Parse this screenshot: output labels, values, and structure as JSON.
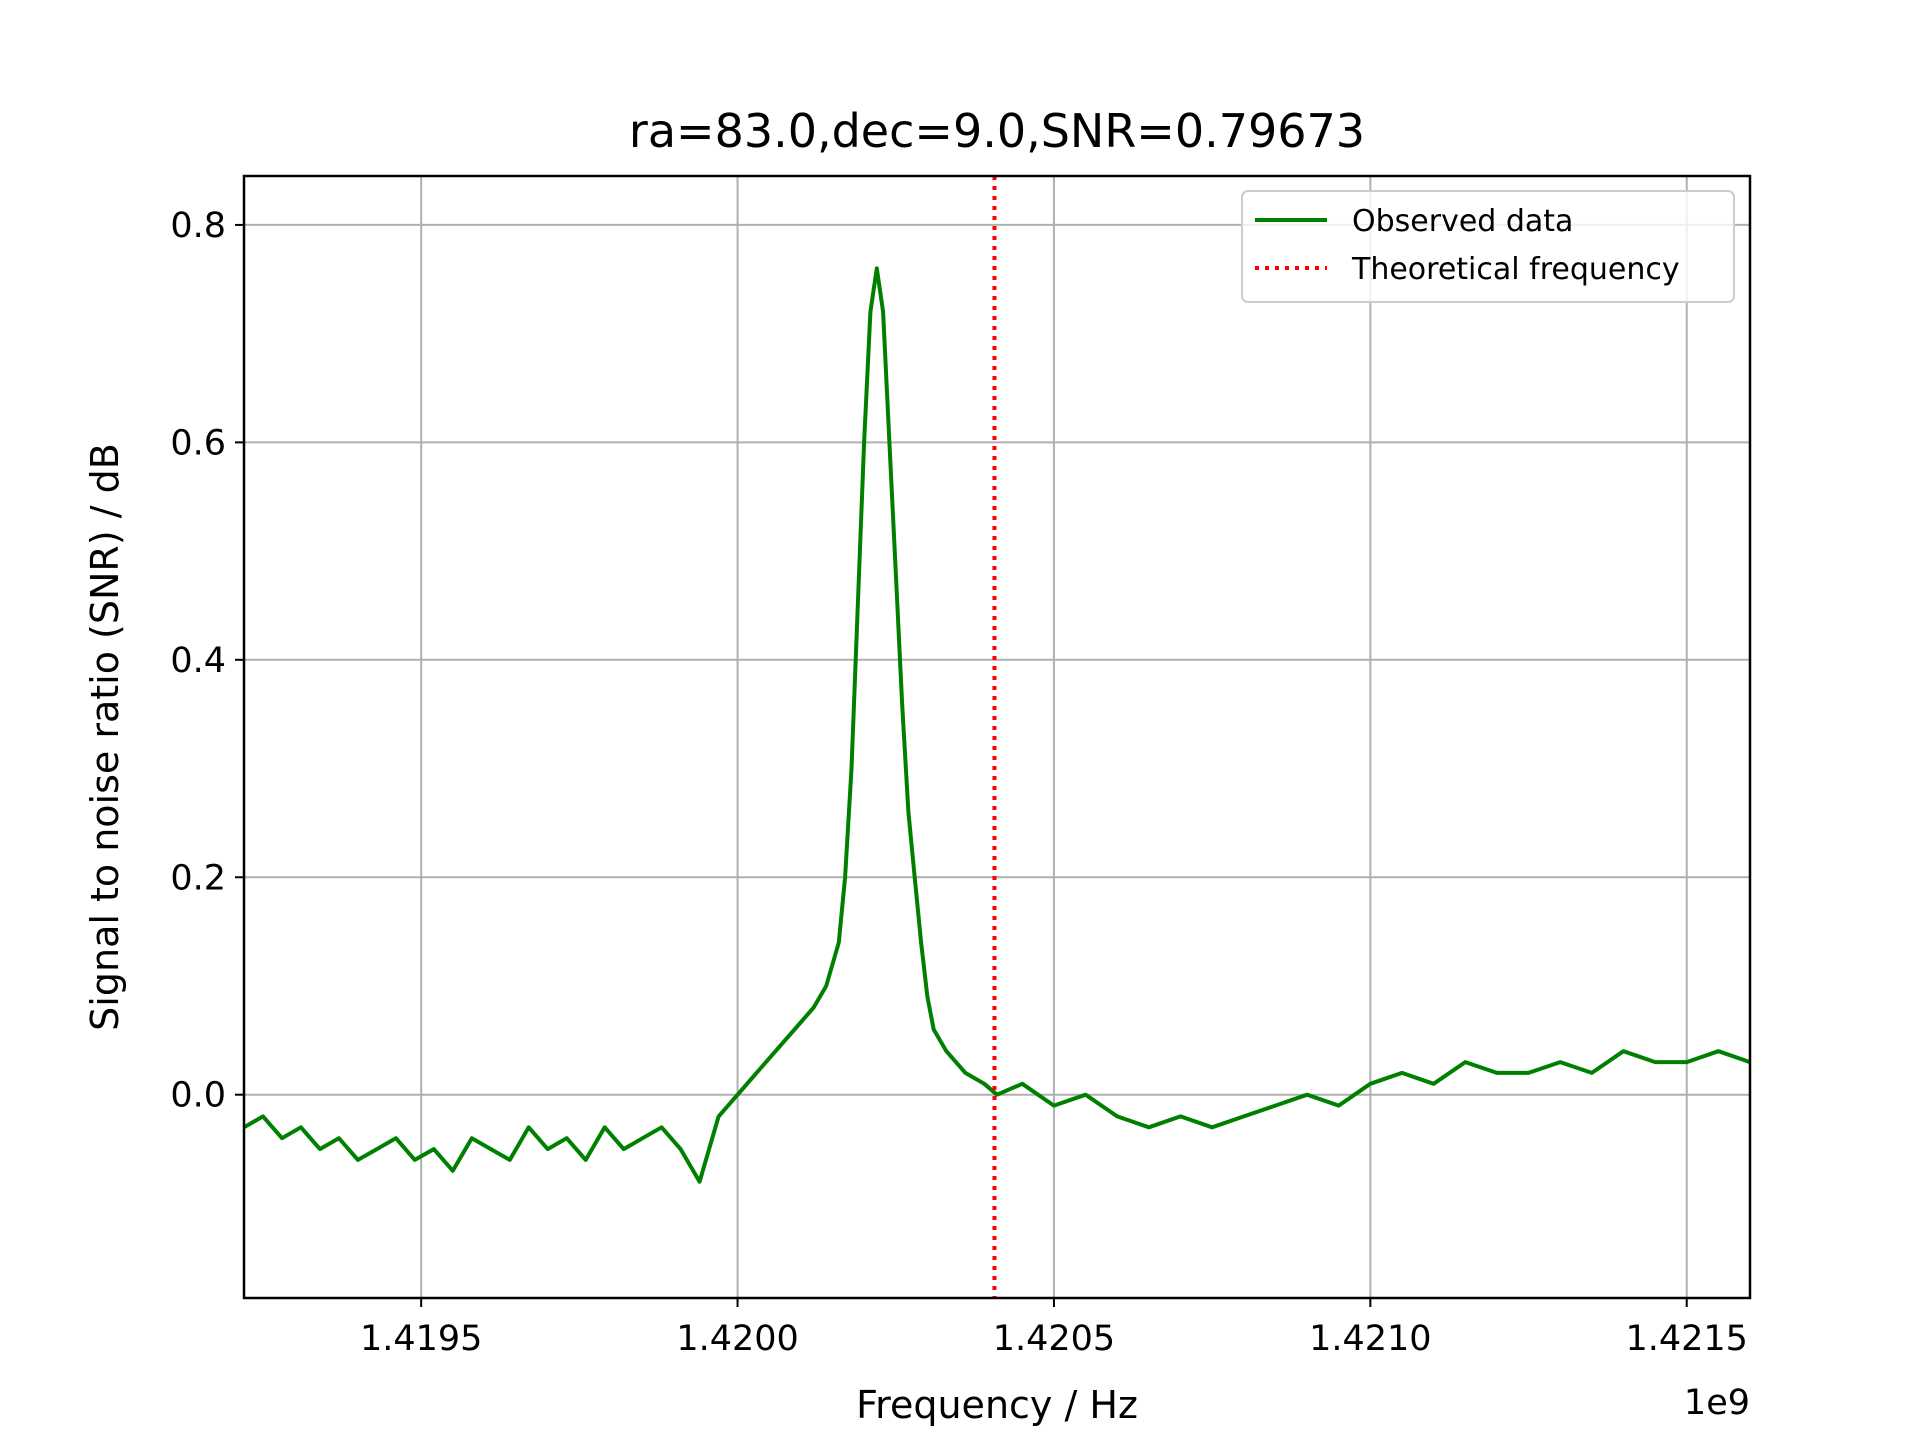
{
  "chart_data": {
    "type": "line",
    "title": "ra=83.0,dec=9.0,SNR=0.79673",
    "xlabel": "Frequency / Hz",
    "ylabel": "Signal to noise ratio (SNR) / dB",
    "x_offset_label": "1e9",
    "xlim": [
      1.41922,
      1.4216
    ],
    "ylim": [
      -0.187,
      0.845
    ],
    "x_ticks": [
      1.4195,
      1.42,
      1.4205,
      1.421,
      1.4215
    ],
    "x_tick_labels": [
      "1.4195",
      "1.4200",
      "1.4205",
      "1.4210",
      "1.4215"
    ],
    "y_ticks": [
      0.0,
      0.2,
      0.4,
      0.6,
      0.8
    ],
    "y_tick_labels": [
      "0.0",
      "0.2",
      "0.4",
      "0.6",
      "0.8"
    ],
    "grid": true,
    "legend_position": "top-right",
    "colors": {
      "observed": "#008000",
      "theoretical": "#ff0000"
    },
    "series": [
      {
        "name": "Observed data",
        "style": "solid",
        "x": [
          1.41922,
          1.41925,
          1.41928,
          1.41931,
          1.41934,
          1.41937,
          1.4194,
          1.41943,
          1.41946,
          1.41949,
          1.41952,
          1.41955,
          1.41958,
          1.41961,
          1.41964,
          1.41967,
          1.4197,
          1.41973,
          1.41976,
          1.41979,
          1.41982,
          1.41985,
          1.41988,
          1.41991,
          1.41994,
          1.41997,
          1.42,
          1.42003,
          1.42006,
          1.42009,
          1.42012,
          1.42014,
          1.42016,
          1.42017,
          1.42018,
          1.42019,
          1.4202,
          1.42021,
          1.42022,
          1.42023,
          1.42024,
          1.42025,
          1.42026,
          1.42027,
          1.42028,
          1.42029,
          1.4203,
          1.42031,
          1.42033,
          1.42036,
          1.42039,
          1.42041,
          1.42045,
          1.4205,
          1.42055,
          1.4206,
          1.42065,
          1.4207,
          1.42075,
          1.4208,
          1.42085,
          1.4209,
          1.42095,
          1.421,
          1.42105,
          1.4211,
          1.42115,
          1.4212,
          1.42125,
          1.4213,
          1.42135,
          1.4214,
          1.42145,
          1.4215,
          1.42155,
          1.4216
        ],
        "y": [
          -0.03,
          -0.02,
          -0.04,
          -0.03,
          -0.05,
          -0.04,
          -0.06,
          -0.05,
          -0.04,
          -0.06,
          -0.05,
          -0.07,
          -0.04,
          -0.05,
          -0.06,
          -0.03,
          -0.05,
          -0.04,
          -0.06,
          -0.03,
          -0.05,
          -0.04,
          -0.03,
          -0.05,
          -0.08,
          -0.02,
          0.0,
          0.02,
          0.04,
          0.06,
          0.08,
          0.1,
          0.14,
          0.2,
          0.3,
          0.45,
          0.6,
          0.72,
          0.76,
          0.72,
          0.6,
          0.48,
          0.36,
          0.26,
          0.2,
          0.14,
          0.09,
          0.06,
          0.04,
          0.02,
          0.01,
          0.0,
          0.01,
          -0.01,
          0.0,
          -0.02,
          -0.03,
          -0.02,
          -0.03,
          -0.02,
          -0.01,
          0.0,
          -0.01,
          0.01,
          0.02,
          0.01,
          0.03,
          0.02,
          0.02,
          0.03,
          0.02,
          0.04,
          0.03,
          0.03,
          0.04,
          0.03
        ]
      },
      {
        "name": "Theoretical frequency",
        "style": "dotted",
        "vertical_line_x": 1.420406
      }
    ]
  }
}
